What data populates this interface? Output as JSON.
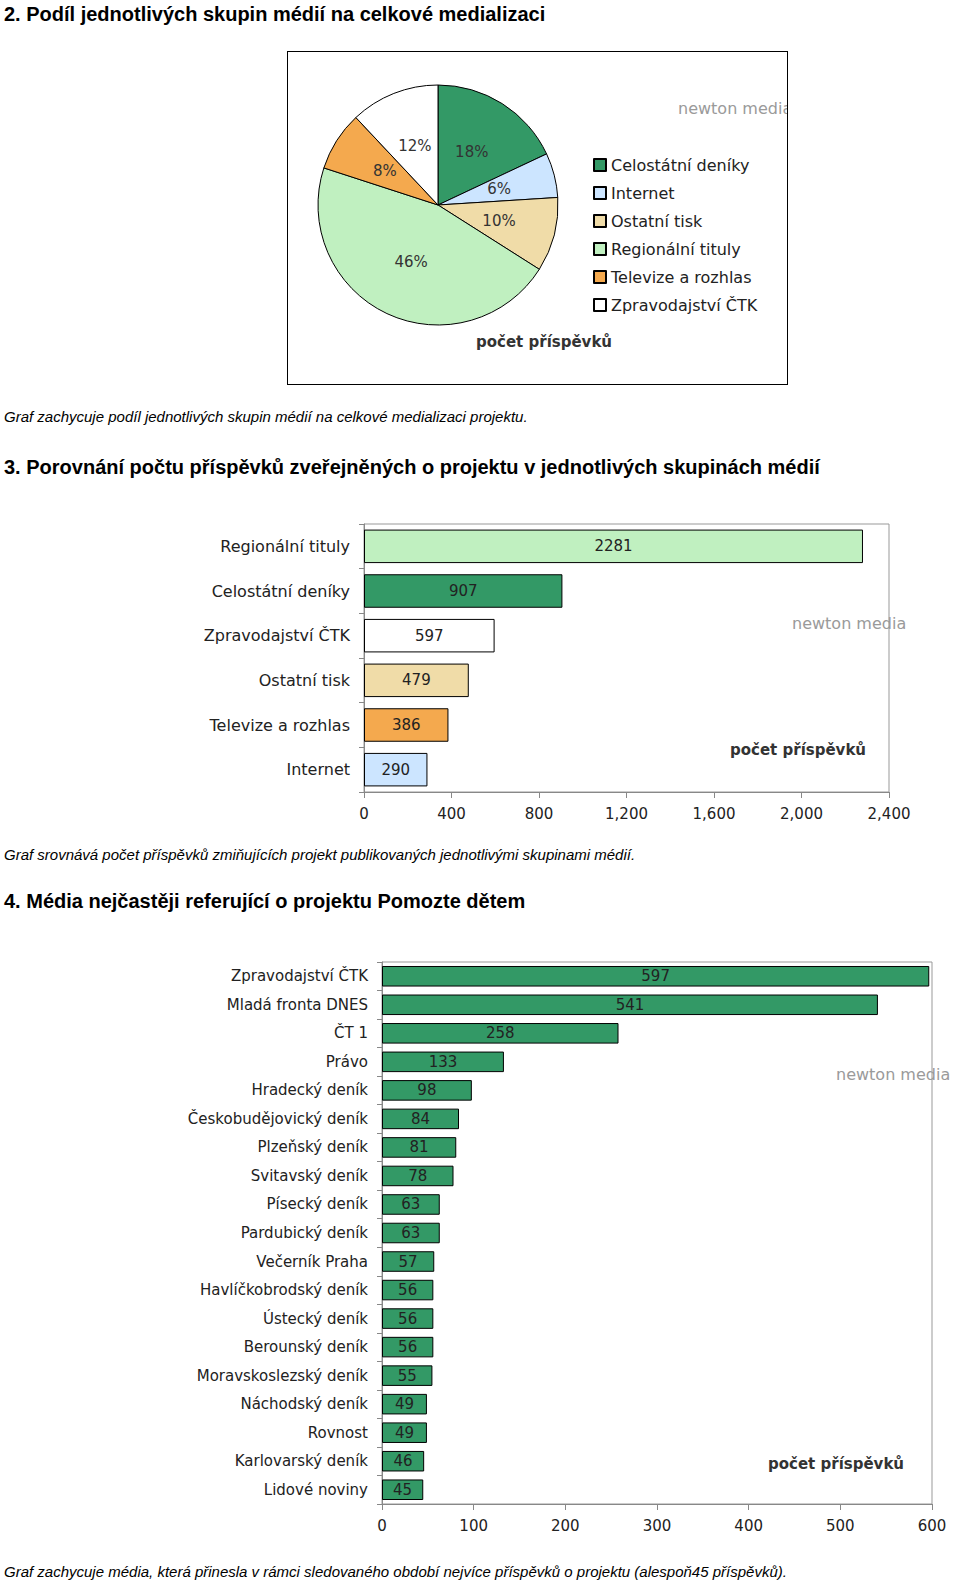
{
  "chart_data": [
    {
      "type": "pie",
      "title": "2. Podíl jednotlivých skupin médií na celkové medializaci",
      "categories": [
        "Celostátní deníky",
        "Internet",
        "Ostatní tisk",
        "Regionální tituly",
        "Televize a rozhlas",
        "Zpravodajství ČTK"
      ],
      "values": [
        18,
        6,
        10,
        46,
        8,
        12
      ],
      "value_labels": [
        "18%",
        "6%",
        "10%",
        "46%",
        "8%",
        "12%"
      ],
      "colors": [
        "#339966",
        "#cce5ff",
        "#f0dca8",
        "#c0f0c0",
        "#f4a94e",
        "#ffffff"
      ],
      "legend": "right",
      "annotations": [
        "počet příspěvků",
        "newton media"
      ],
      "caption": "Graf zachycuje podíl jednotlivých skupin médií na celkové medializaci projektu."
    },
    {
      "type": "bar",
      "title": "3. Porovnání počtu příspěvků zveřejněných o projektu v jednotlivých skupinách médií",
      "orientation": "horizontal",
      "categories": [
        "Regionální tituly",
        "Celostátní deníky",
        "Zpravodajství ČTK",
        "Ostatní tisk",
        "Televize a rozhlas",
        "Internet"
      ],
      "values": [
        2281,
        907,
        597,
        479,
        386,
        290
      ],
      "colors": [
        "#c0f0c0",
        "#339966",
        "#ffffff",
        "#f0dca8",
        "#f4a94e",
        "#cce5ff"
      ],
      "xlim": [
        0,
        2400
      ],
      "xticks": [
        0,
        400,
        800,
        1200,
        1600,
        2000,
        2400
      ],
      "grid": false,
      "data_labels": true,
      "annotations": [
        "počet příspěvků",
        "newton media"
      ],
      "caption": "Graf srovnává počet příspěvků zmiňujících projekt publikovaných jednotlivými skupinami médií."
    },
    {
      "type": "bar",
      "title": "4. Média nejčastěji referující o projektu Pomozte dětem",
      "orientation": "horizontal",
      "categories": [
        "Zpravodajství ČTK",
        "Mladá fronta DNES",
        "ČT 1",
        "Právo",
        "Hradecký deník",
        "Českobudějovický deník",
        "Plzeňský deník",
        "Svitavský deník",
        "Písecký deník",
        "Pardubický deník",
        "Večerník Praha",
        "Havlíčkobrodský deník",
        "Ústecký deník",
        "Berounský deník",
        "Moravskoslezský deník",
        "Náchodský deník",
        "Rovnost",
        "Karlovarský deník",
        "Lidové noviny"
      ],
      "values": [
        597,
        541,
        258,
        133,
        98,
        84,
        81,
        78,
        63,
        63,
        57,
        56,
        56,
        56,
        55,
        49,
        49,
        46,
        45
      ],
      "color": "#339966",
      "xlim": [
        0,
        600
      ],
      "xticks": [
        0,
        100,
        200,
        300,
        400,
        500,
        600
      ],
      "grid": false,
      "data_labels": true,
      "annotations": [
        "počet příspěvků",
        "newton media"
      ],
      "caption": "Graf zachycuje média, která přinesla v rámci sledovaného období nejvíce příspěvků o projektu (alespoň45 příspěvků)."
    }
  ]
}
